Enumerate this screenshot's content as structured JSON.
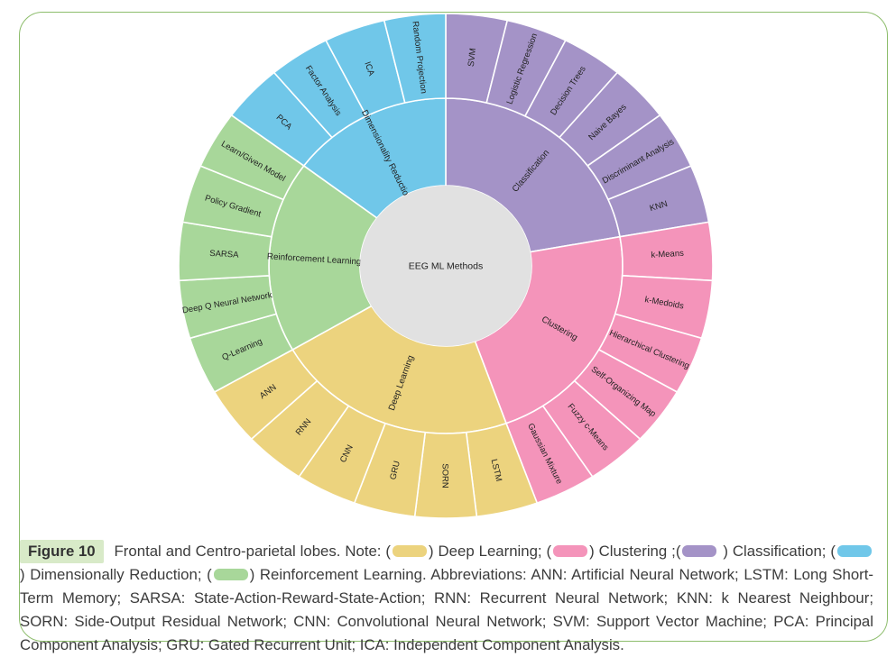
{
  "page": {
    "border_color": "#8dbd6c",
    "background": "#ffffff"
  },
  "chart_data": {
    "type": "sunburst",
    "title": "",
    "center_label": "EEG ML Methods",
    "center_color": "#e1e1e1",
    "segment_stroke": "#ffffff",
    "layout": {
      "start_angle_deg": 0,
      "direction": "clockwise",
      "equal_leaf_angles": true,
      "rings": 2,
      "total_leaves": 27
    },
    "categories": [
      {
        "name": "Classification",
        "color": "#a493c7",
        "children": [
          "SVM",
          "Logistic Regression",
          "Decision Trees",
          "Naive Bayes",
          "Discriminant Analysis",
          "KNN"
        ]
      },
      {
        "name": "Clustering",
        "color": "#f494ba",
        "children": [
          "k-Means",
          "k-Medoids",
          "Hierarchical Clustering",
          "Self-Organizing Map",
          "Fuzzy c-Means",
          "Gaussian Mixture"
        ]
      },
      {
        "name": "Deep Learning",
        "color": "#ecd37e",
        "children": [
          "LSTM",
          "SORN",
          "GRU",
          "CNN",
          "RNN",
          "ANN"
        ]
      },
      {
        "name": "Reinforcement Learning",
        "color": "#a8d79a",
        "children": [
          "Q-Learning",
          "Deep Q Neural Network",
          "SARSA",
          "Policy Gradient",
          "Learn/Given Model"
        ]
      },
      {
        "name": "Dimensionality Reduction",
        "color": "#70c7e9",
        "children": [
          "PCA",
          "Factor Analysis",
          "ICA",
          "Random Projection"
        ]
      }
    ]
  },
  "figure": {
    "label": "Figure 10",
    "caption_parts": [
      {
        "type": "text",
        "text": " Frontal and Centro-parietal lobes. Note: ("
      },
      {
        "type": "swatch",
        "name": "deep-learning",
        "color": "#ecd37e"
      },
      {
        "type": "text",
        "text": ") Deep Learning; ("
      },
      {
        "type": "swatch",
        "name": "clustering",
        "color": "#f494ba"
      },
      {
        "type": "text",
        "text": ") Clustering ;("
      },
      {
        "type": "swatch",
        "name": "classification",
        "color": "#a493c7"
      },
      {
        "type": "text",
        "text": " ) Classification; ("
      },
      {
        "type": "swatch",
        "name": "dimensionally-reduction",
        "color": "#70c7e9"
      },
      {
        "type": "text",
        "text": " ) Dimensionally Reduction; ("
      },
      {
        "type": "swatch",
        "name": "reinforcement-learning",
        "color": "#a8d79a"
      },
      {
        "type": "text",
        "text": ") Reinforcement Learning. Abbreviations: ANN: Artificial Neural Network; LSTM: Long Short-Term Memory; SARSA: State-Action-Reward-State-Action; RNN: Recurrent Neural Network; KNN: k Nearest Neighbour; SORN: Side-Output Residual Network; CNN: Convolutional Neural Network; SVM: Support Vector Machine; PCA: Principal Component Analysis; GRU: Gated Recurrent Unit; ICA: Independent Component Analysis."
      }
    ]
  }
}
